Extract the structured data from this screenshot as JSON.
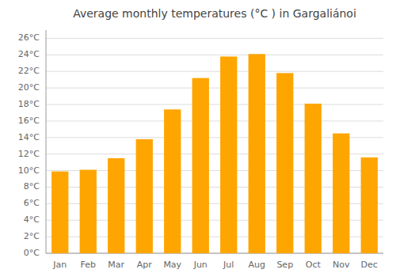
{
  "chart_data": {
    "type": "bar",
    "title": "Average monthly temperatures (°C ) in Gargaliánoi",
    "categories": [
      "Jan",
      "Feb",
      "Mar",
      "Apr",
      "May",
      "Jun",
      "Jul",
      "Aug",
      "Sep",
      "Oct",
      "Nov",
      "Dec"
    ],
    "values": [
      9.9,
      10.1,
      11.5,
      13.8,
      17.4,
      21.2,
      23.8,
      24.1,
      21.8,
      18.1,
      14.5,
      11.6
    ],
    "color": "#FFA500",
    "ylim": [
      0,
      27
    ],
    "yticks": [
      {
        "value": 0,
        "label": "0°C"
      },
      {
        "value": 2,
        "label": "2°C"
      },
      {
        "value": 4,
        "label": "4°C"
      },
      {
        "value": 6,
        "label": "6°C"
      },
      {
        "value": 8,
        "label": "8°C"
      },
      {
        "value": 10,
        "label": "10°C"
      },
      {
        "value": 12,
        "label": "12°C"
      },
      {
        "value": 14,
        "label": "14°C"
      },
      {
        "value": 16,
        "label": "16°C"
      },
      {
        "value": 18,
        "label": "18°C"
      },
      {
        "value": 20,
        "label": "20°C"
      },
      {
        "value": 22,
        "label": "22°C"
      },
      {
        "value": 24,
        "label": "24°C"
      },
      {
        "value": 26,
        "label": "26°C"
      }
    ],
    "grid": true
  }
}
